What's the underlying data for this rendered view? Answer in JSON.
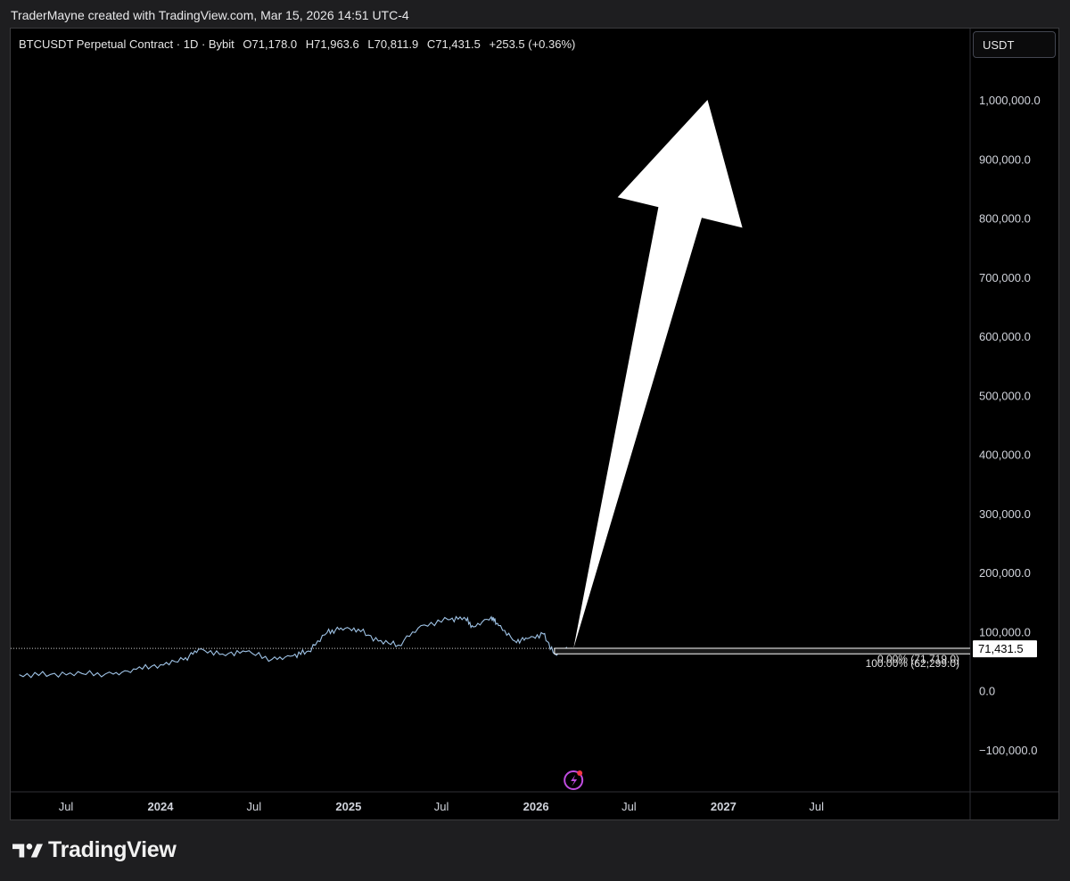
{
  "header": {
    "caption": "TraderMayne created with TradingView.com, Mar 15, 2026 14:51 UTC-4"
  },
  "legend": {
    "symbol": "BTCUSDT Perpetual Contract · 1D · Bybit",
    "open": "O71,178.0",
    "high": "H71,963.6",
    "low": "L70,811.9",
    "close": "C71,431.5",
    "change": "+253.5 (+0.36%)"
  },
  "currency_button": "USDT",
  "brand": {
    "name": "TradingView"
  },
  "colors": {
    "background": "#000000",
    "price_line": "#9fc3e6",
    "arrow": "#ffffff",
    "axis_text": "#d1d4dc"
  },
  "chart_data": {
    "type": "line",
    "title": "BTCUSDT Perpetual Contract · 1D · Bybit",
    "y_axis_labels": [
      "1,000,000.0",
      "900,000.0",
      "800,000.0",
      "700,000.0",
      "600,000.0",
      "500,000.0",
      "400,000.0",
      "300,000.0",
      "200,000.0",
      "100,000.0",
      "0.0",
      "−100,000.0"
    ],
    "y_axis_values": [
      1000000,
      900000,
      800000,
      700000,
      600000,
      500000,
      400000,
      300000,
      200000,
      100000,
      0,
      -100000
    ],
    "x_axis_labels": [
      "Jul",
      "2024",
      "Jul",
      "2025",
      "Jul",
      "2026",
      "Jul",
      "2027",
      "Jul"
    ],
    "x_axis_dates": [
      "2023-07-01",
      "2024-01-01",
      "2024-07-01",
      "2025-01-01",
      "2025-07-01",
      "2026-01-01",
      "2026-07-01",
      "2027-01-01",
      "2027-07-01"
    ],
    "x_axis_bold": [
      false,
      true,
      false,
      true,
      false,
      true,
      false,
      true,
      false
    ],
    "ylim": [
      -100000,
      1000000
    ],
    "series": [
      {
        "points": [
          [
            "2023-04-01",
            27000
          ],
          [
            "2023-06-01",
            27500
          ],
          [
            "2023-08-01",
            29000
          ],
          [
            "2023-10-01",
            28000
          ],
          [
            "2023-11-15",
            36000
          ],
          [
            "2024-01-01",
            44000
          ],
          [
            "2024-02-15",
            52000
          ],
          [
            "2024-03-15",
            70000
          ],
          [
            "2024-05-01",
            62000
          ],
          [
            "2024-06-15",
            66000
          ],
          [
            "2024-08-05",
            53000
          ],
          [
            "2024-09-15",
            59000
          ],
          [
            "2024-10-15",
            67000
          ],
          [
            "2024-11-20",
            98000
          ],
          [
            "2024-12-17",
            106000
          ],
          [
            "2025-01-20",
            104000
          ],
          [
            "2025-02-28",
            84000
          ],
          [
            "2025-04-08",
            77000
          ],
          [
            "2025-05-22",
            110000
          ],
          [
            "2025-07-14",
            120000
          ],
          [
            "2025-08-14",
            124000
          ],
          [
            "2025-09-01",
            108000
          ],
          [
            "2025-10-06",
            125000
          ],
          [
            "2025-10-20",
            110000
          ],
          [
            "2025-11-21",
            84000
          ],
          [
            "2025-12-15",
            88000
          ],
          [
            "2026-01-15",
            96000
          ],
          [
            "2026-02-06",
            62000
          ],
          [
            "2026-03-15",
            71431.5
          ]
        ]
      }
    ],
    "last_price": 71431.5,
    "last_price_label": "71,431.5",
    "fib": {
      "level_0_label": "0.00% (71,719.0)",
      "level_0_value": 71719.0,
      "level_100_label": "100.00% (62,299.0)",
      "level_100_value": 62299.0,
      "start": "2026-02-06",
      "end": "2026-03-15"
    },
    "arrow": {
      "from": [
        "2026-03-15",
        71431.5
      ],
      "to": [
        "2026-12-01",
        1000000
      ]
    },
    "grid": false,
    "legend": "top-left"
  }
}
